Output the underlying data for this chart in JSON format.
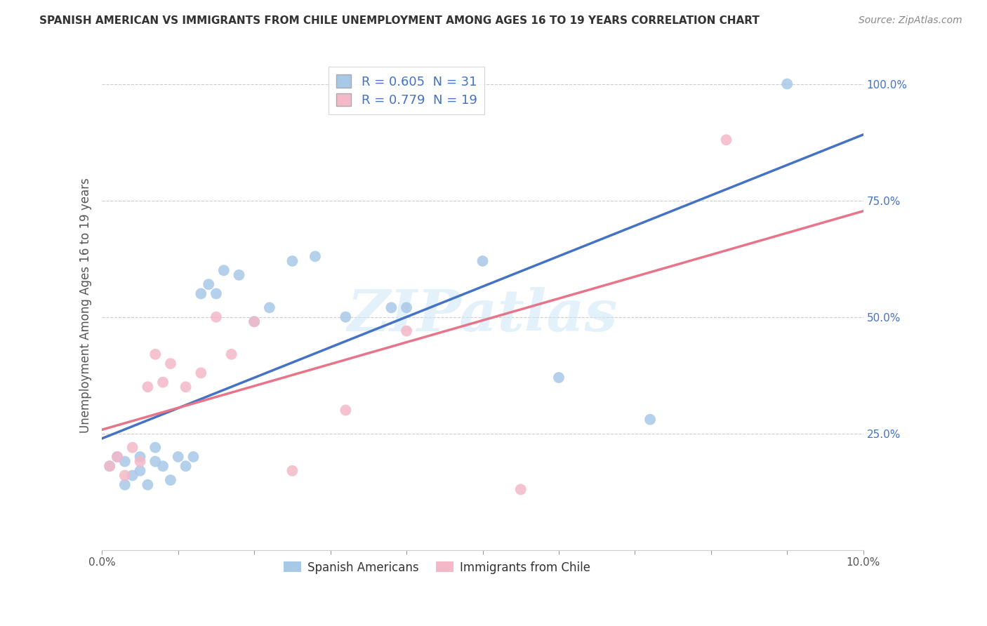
{
  "title": "SPANISH AMERICAN VS IMMIGRANTS FROM CHILE UNEMPLOYMENT AMONG AGES 16 TO 19 YEARS CORRELATION CHART",
  "source": "Source: ZipAtlas.com",
  "ylabel": "Unemployment Among Ages 16 to 19 years",
  "xlim": [
    0.0,
    0.1
  ],
  "ylim": [
    0.0,
    1.05
  ],
  "xticks": [
    0.0,
    0.01,
    0.02,
    0.03,
    0.04,
    0.05,
    0.06,
    0.07,
    0.08,
    0.09,
    0.1
  ],
  "yticks": [
    0.0,
    0.25,
    0.5,
    0.75,
    1.0
  ],
  "blue_color": "#A8C8E8",
  "pink_color": "#F4B8C8",
  "trend_blue": "#4472C4",
  "trend_pink": "#E8748A",
  "axis_label_color": "#4472C4",
  "r_blue": 0.605,
  "n_blue": 31,
  "r_pink": 0.779,
  "n_pink": 19,
  "legend_label_blue": "Spanish Americans",
  "legend_label_pink": "Immigrants from Chile",
  "spanish_x": [
    0.001,
    0.002,
    0.003,
    0.003,
    0.004,
    0.005,
    0.005,
    0.006,
    0.007,
    0.007,
    0.008,
    0.009,
    0.01,
    0.011,
    0.012,
    0.013,
    0.014,
    0.015,
    0.016,
    0.018,
    0.02,
    0.022,
    0.025,
    0.028,
    0.032,
    0.038,
    0.04,
    0.05,
    0.06,
    0.072,
    0.09
  ],
  "spanish_y": [
    0.18,
    0.2,
    0.14,
    0.19,
    0.16,
    0.2,
    0.17,
    0.14,
    0.19,
    0.22,
    0.18,
    0.15,
    0.2,
    0.18,
    0.2,
    0.55,
    0.57,
    0.55,
    0.6,
    0.59,
    0.49,
    0.52,
    0.62,
    0.63,
    0.5,
    0.52,
    0.52,
    0.62,
    0.37,
    0.28,
    1.0
  ],
  "chile_x": [
    0.001,
    0.002,
    0.003,
    0.004,
    0.005,
    0.006,
    0.007,
    0.008,
    0.009,
    0.011,
    0.013,
    0.015,
    0.017,
    0.02,
    0.025,
    0.032,
    0.04,
    0.055,
    0.082
  ],
  "chile_y": [
    0.18,
    0.2,
    0.16,
    0.22,
    0.19,
    0.35,
    0.42,
    0.36,
    0.4,
    0.35,
    0.38,
    0.5,
    0.42,
    0.49,
    0.17,
    0.3,
    0.47,
    0.13,
    0.88
  ],
  "watermark_text": "ZIPatlas",
  "bg_color": "#FFFFFF",
  "grid_color": "#CCCCCC",
  "marker_size": 130
}
